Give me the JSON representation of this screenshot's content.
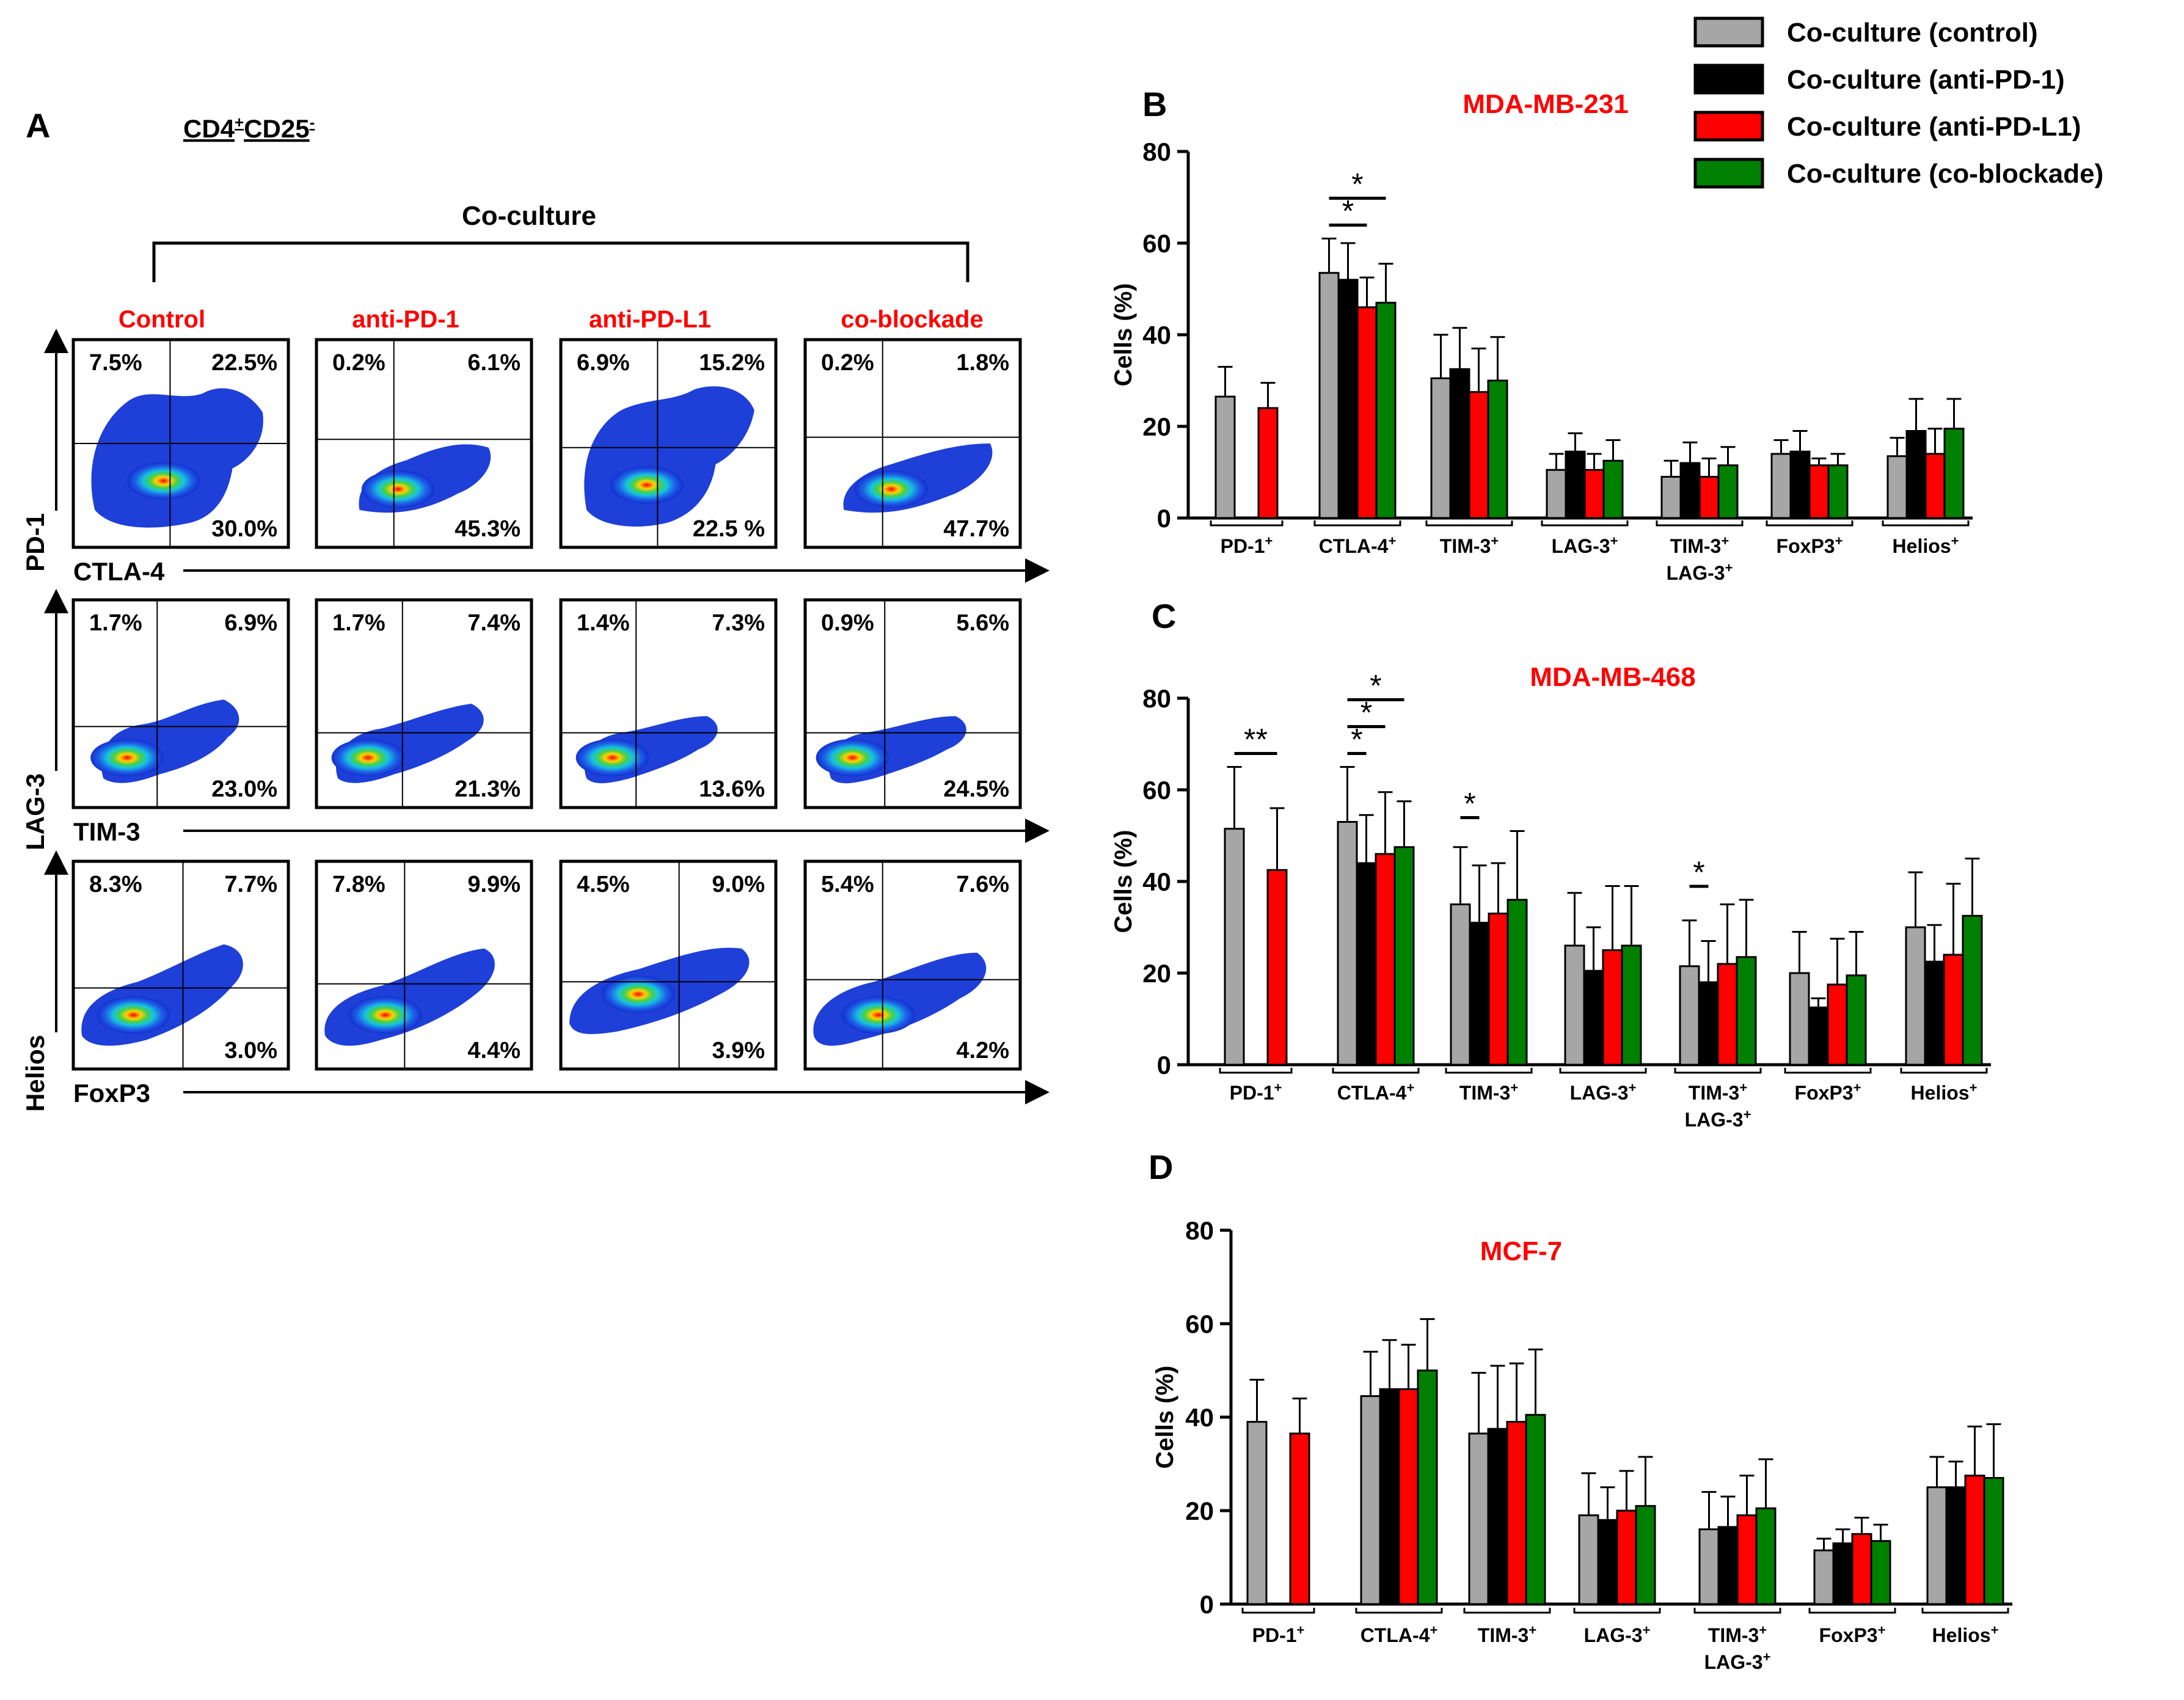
{
  "panel_a": {
    "letter": "A",
    "population_main": "CD4",
    "population_sup1": "+",
    "population_mid": "CD25",
    "population_sup2": "-",
    "coculture_label": "Co-culture",
    "columns": [
      "Control",
      "anti-PD-1",
      "anti-PD-L1",
      "co-blockade"
    ],
    "rows": [
      {
        "y_marker": "PD-1",
        "x_marker": "CTLA-4",
        "plots": [
          {
            "ul": "7.5%",
            "ur": "22.5%",
            "lr": "30.0%"
          },
          {
            "ul": "0.2%",
            "ur": "6.1%",
            "lr": "45.3%"
          },
          {
            "ul": "6.9%",
            "ur": "15.2%",
            "lr": "22.5 %"
          },
          {
            "ul": "0.2%",
            "ur": "1.8%",
            "lr": "47.7%"
          }
        ]
      },
      {
        "y_marker": "LAG-3",
        "x_marker": "TIM-3",
        "plots": [
          {
            "ul": "1.7%",
            "ur": "6.9%",
            "lr": "23.0%"
          },
          {
            "ul": "1.7%",
            "ur": "7.4%",
            "lr": "21.3%"
          },
          {
            "ul": "1.4%",
            "ur": "7.3%",
            "lr": "13.6%"
          },
          {
            "ul": "0.9%",
            "ur": "5.6%",
            "lr": "24.5%"
          }
        ]
      },
      {
        "y_marker": "Helios",
        "x_marker": "FoxP3",
        "plots": [
          {
            "ul": "8.3%",
            "ur": "7.7%",
            "lr": "3.0%"
          },
          {
            "ul": "7.8%",
            "ur": "9.9%",
            "lr": "4.4%"
          },
          {
            "ul": "4.5%",
            "ur": "9.0%",
            "lr": "3.9%"
          },
          {
            "ul": "5.4%",
            "ur": "7.6%",
            "lr": "4.2%"
          }
        ]
      }
    ]
  },
  "legend": [
    {
      "label": "Co-culture (control)",
      "color": "#a6a6a6"
    },
    {
      "label": "Co-culture (anti-PD-1)",
      "color": "#000000"
    },
    {
      "label": "Co-culture (anti-PD-L1)",
      "color": "#ff0000"
    },
    {
      "label": "Co-culture (co-blockade)",
      "color": "#008000"
    }
  ],
  "chart_data": [
    {
      "type": "bar",
      "panel": "B",
      "title": "MDA-MB-231",
      "ylabel": "Cells (%)",
      "ylim": [
        0,
        80
      ],
      "yticks": [
        0,
        20,
        40,
        60,
        80
      ],
      "categories": [
        "PD-1+",
        "CTLA-4+",
        "TIM-3+",
        "LAG-3+",
        "TIM-3+ LAG-3+",
        "FoxP3+",
        "Helios+"
      ],
      "series": [
        {
          "name": "Co-culture (control)",
          "values": [
            26.5,
            53.5,
            30.5,
            10.5,
            9,
            14,
            13.5
          ],
          "errors": [
            6.5,
            7.5,
            9.5,
            3.5,
            3.5,
            3,
            4
          ]
        },
        {
          "name": "Co-culture (anti-PD-1)",
          "values": [
            null,
            52,
            32.5,
            14.5,
            12,
            14.5,
            19
          ],
          "errors": [
            null,
            8,
            9,
            4,
            4.5,
            4.5,
            7
          ]
        },
        {
          "name": "Co-culture (anti-PD-L1)",
          "values": [
            24,
            46,
            27.5,
            10.5,
            9,
            11.5,
            14
          ],
          "errors": [
            5.5,
            6.5,
            9.5,
            3.5,
            4,
            1.5,
            5.5
          ]
        },
        {
          "name": "Co-culture (co-blockade)",
          "values": [
            null,
            47,
            30,
            12.5,
            11.5,
            11.5,
            19.5
          ],
          "errors": [
            null,
            8.5,
            9.5,
            4.5,
            4,
            2.5,
            6.5
          ]
        }
      ],
      "significance": [
        {
          "label": "*",
          "category": "CTLA-4+",
          "from_series": 0,
          "to_series": 2
        },
        {
          "label": "*",
          "category": "CTLA-4+",
          "from_series": 0,
          "to_series": 3
        }
      ]
    },
    {
      "type": "bar",
      "panel": "C",
      "title": "MDA-MB-468",
      "ylabel": "Cells (%)",
      "ylim": [
        0,
        80
      ],
      "yticks": [
        0,
        20,
        40,
        60,
        80
      ],
      "categories": [
        "PD-1+",
        "CTLA-4+",
        "TIM-3+",
        "LAG-3+",
        "TIM-3+ LAG-3+",
        "FoxP3+",
        "Helios+"
      ],
      "series": [
        {
          "name": "Co-culture (control)",
          "values": [
            51.5,
            53,
            35,
            26,
            21.5,
            20,
            30
          ],
          "errors": [
            13.5,
            12,
            12.5,
            11.5,
            10,
            9,
            12
          ]
        },
        {
          "name": "Co-culture (anti-PD-1)",
          "values": [
            null,
            44,
            31,
            20.5,
            18,
            12.5,
            22.5
          ],
          "errors": [
            null,
            10.5,
            12.5,
            9.5,
            9,
            2,
            8
          ]
        },
        {
          "name": "Co-culture (anti-PD-L1)",
          "values": [
            42.5,
            46,
            33,
            25,
            22,
            17.5,
            24
          ],
          "errors": [
            13.5,
            13.5,
            11,
            14,
            13,
            10,
            15.5
          ]
        },
        {
          "name": "Co-culture (co-blockade)",
          "values": [
            null,
            47.5,
            36,
            26,
            23.5,
            19.5,
            32.5
          ],
          "errors": [
            null,
            10,
            15,
            13,
            12.5,
            9.5,
            12.5
          ]
        }
      ],
      "significance": [
        {
          "label": "**",
          "category": "PD-1+",
          "from_series": 0,
          "to_series": 2
        },
        {
          "label": "*",
          "category": "CTLA-4+",
          "from_series": 0,
          "to_series": 1
        },
        {
          "label": "*",
          "category": "CTLA-4+",
          "from_series": 0,
          "to_series": 2
        },
        {
          "label": "*",
          "category": "CTLA-4+",
          "from_series": 0,
          "to_series": 3
        },
        {
          "label": "*",
          "category": "TIM-3+",
          "from_series": 0,
          "to_series": 1
        },
        {
          "label": "*",
          "category": "TIM-3+ LAG-3+",
          "from_series": 0,
          "to_series": 1
        }
      ]
    },
    {
      "type": "bar",
      "panel": "D",
      "title": "MCF-7",
      "ylabel": "Cells (%)",
      "ylim": [
        0,
        80
      ],
      "yticks": [
        0,
        20,
        40,
        60,
        80
      ],
      "categories": [
        "PD-1+",
        "CTLA-4+",
        "TIM-3+",
        "LAG-3+",
        "TIM-3+ LAG-3+",
        "FoxP3+",
        "Helios+"
      ],
      "series": [
        {
          "name": "Co-culture (control)",
          "values": [
            39,
            44.5,
            36.5,
            19,
            16,
            11.5,
            25
          ],
          "errors": [
            9,
            9.5,
            13,
            9,
            8,
            2.5,
            6.5
          ]
        },
        {
          "name": "Co-culture (anti-PD-1)",
          "values": [
            null,
            46,
            37.5,
            18,
            16.5,
            13,
            25
          ],
          "errors": [
            null,
            10.5,
            13.5,
            7,
            6.5,
            3,
            5.5
          ]
        },
        {
          "name": "Co-culture (anti-PD-L1)",
          "values": [
            36.5,
            46,
            39,
            20,
            19,
            15,
            27.5
          ],
          "errors": [
            7.5,
            9.5,
            12.5,
            8.5,
            8.5,
            3.5,
            10.5
          ]
        },
        {
          "name": "Co-culture (co-blockade)",
          "values": [
            null,
            50,
            40.5,
            21,
            20.5,
            13.5,
            27
          ],
          "errors": [
            null,
            11,
            14,
            10.5,
            10.5,
            3.5,
            11.5
          ]
        }
      ],
      "significance": []
    }
  ]
}
